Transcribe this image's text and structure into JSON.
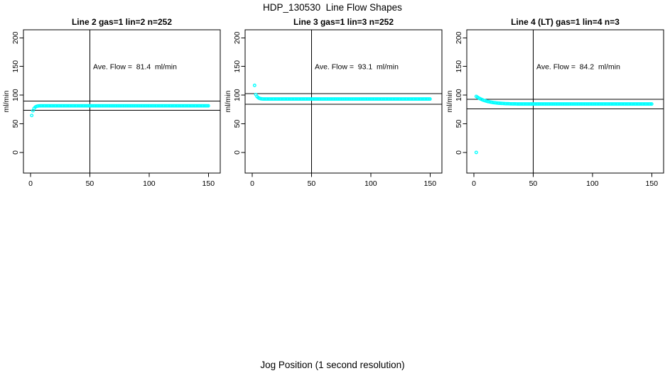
{
  "figure": {
    "title": "HDP_130530  Line Flow Shapes",
    "outer_xlabel": "Jog Position (1 second resolution)"
  },
  "style": {
    "point_color": "#00FFFF",
    "axis_color": "#000000",
    "background": "#FFFFFF"
  },
  "chart_data": [
    {
      "type": "scatter",
      "title": "Line 2 gas=1 lin=2 n=252",
      "ylabel": "ml/min",
      "annotation": "Ave. Flow =  81.4  ml/min",
      "ave_flow_ml_min": 81.4,
      "n": 252,
      "xlim": [
        -6,
        160
      ],
      "ylim": [
        -36,
        214
      ],
      "xticks": [
        0,
        50,
        100,
        150
      ],
      "yticks": [
        0,
        50,
        100,
        150,
        200
      ],
      "vline_x": 50,
      "hlines": [
        89.5,
        73.3
      ],
      "outliers": [],
      "points_head": [
        [
          1,
          64.5
        ],
        [
          2,
          72.8
        ],
        [
          3,
          77.0
        ],
        [
          4,
          79.2
        ],
        [
          5,
          80.3
        ],
        [
          6,
          80.9
        ],
        [
          7,
          81.2
        ],
        [
          8,
          81.3
        ]
      ],
      "plateau": {
        "x_from": 9,
        "x_to": 150,
        "y": 81.4
      }
    },
    {
      "type": "scatter",
      "title": "Line 3 gas=1 lin=3 n=252",
      "ylabel": "ml/min",
      "annotation": "Ave. Flow =  93.1  ml/min",
      "ave_flow_ml_min": 93.1,
      "n": 252,
      "xlim": [
        -6,
        160
      ],
      "ylim": [
        -36,
        214
      ],
      "xticks": [
        0,
        50,
        100,
        150
      ],
      "yticks": [
        0,
        50,
        100,
        150,
        200
      ],
      "vline_x": 50,
      "hlines": [
        102.4,
        83.8
      ],
      "outliers": [
        [
          2,
          117
        ]
      ],
      "points_head": [
        [
          3,
          101.0
        ],
        [
          4,
          97.6
        ],
        [
          5,
          95.7
        ],
        [
          6,
          94.4
        ],
        [
          7,
          93.8
        ],
        [
          8,
          93.5
        ],
        [
          9,
          93.3
        ]
      ],
      "plateau": {
        "x_from": 10,
        "x_to": 150,
        "y": 93.2
      }
    },
    {
      "type": "scatter",
      "title": "Line 4 (LT) gas=1 lin=4 n=3",
      "ylabel": "ml/min",
      "annotation": "Ave. Flow =  84.2  ml/min",
      "ave_flow_ml_min": 84.2,
      "n": 3,
      "xlim": [
        -6,
        160
      ],
      "ylim": [
        -36,
        214
      ],
      "xticks": [
        0,
        50,
        100,
        150
      ],
      "yticks": [
        0,
        50,
        100,
        150,
        200
      ],
      "vline_x": 50,
      "hlines": [
        92.6,
        75.8
      ],
      "outliers": [
        [
          2,
          0
        ]
      ],
      "points_head": [
        [
          2,
          97.8
        ],
        [
          3,
          96.4
        ],
        [
          4,
          95.1
        ],
        [
          5,
          94.0
        ],
        [
          6,
          93.0
        ],
        [
          7,
          92.0
        ],
        [
          8,
          91.2
        ],
        [
          9,
          90.5
        ],
        [
          10,
          89.9
        ],
        [
          11,
          89.3
        ],
        [
          12,
          88.7
        ],
        [
          13,
          88.3
        ],
        [
          14,
          87.9
        ],
        [
          15,
          87.5
        ],
        [
          16,
          87.1
        ],
        [
          17,
          86.8
        ],
        [
          18,
          86.6
        ],
        [
          19,
          86.3
        ],
        [
          20,
          86.1
        ],
        [
          21,
          85.9
        ],
        [
          22,
          85.8
        ],
        [
          23,
          85.6
        ],
        [
          24,
          85.5
        ],
        [
          25,
          85.4
        ],
        [
          26,
          85.2
        ],
        [
          27,
          85.1
        ],
        [
          28,
          85.1
        ],
        [
          29,
          85.0
        ],
        [
          30,
          84.9
        ],
        [
          31,
          84.8
        ],
        [
          32,
          84.8
        ],
        [
          33,
          84.7
        ],
        [
          34,
          84.7
        ],
        [
          35,
          84.7
        ],
        [
          36,
          84.6
        ]
      ],
      "plateau": {
        "x_from": 37,
        "x_to": 150,
        "y": 84.5
      }
    }
  ]
}
